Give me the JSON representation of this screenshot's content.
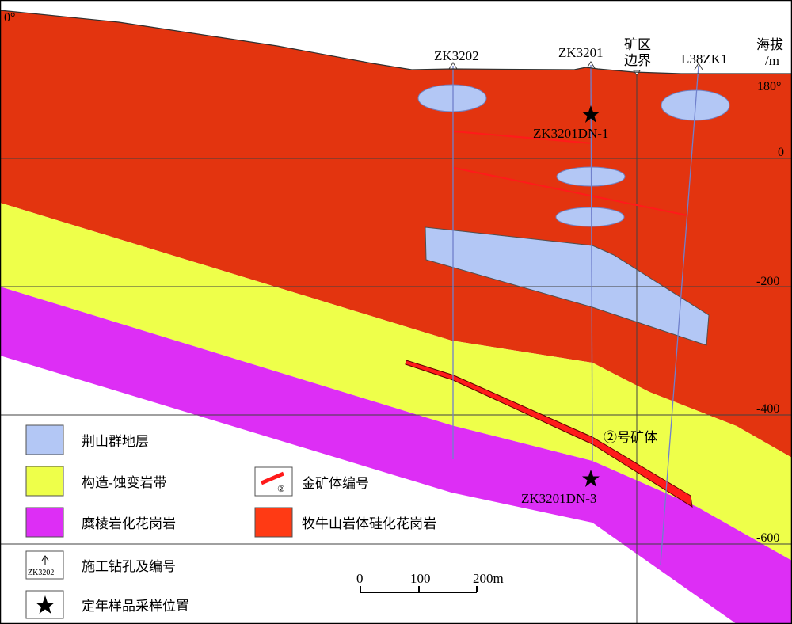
{
  "angles": {
    "left": "0°",
    "right": "180°"
  },
  "elevation_axis": {
    "title_line1": "海拔",
    "title_line2": "/m"
  },
  "elevation_ticks": [
    "0",
    "-200",
    "-400",
    "-600"
  ],
  "boreholes": {
    "zk3202": "ZK3202",
    "zk3201": "ZK3201",
    "l38zk1": "L38ZK1"
  },
  "boundary": {
    "line1": "矿区",
    "line2": "边界"
  },
  "samples": {
    "upper": "ZK3201DN-1",
    "lower": "ZK3201DN-3"
  },
  "orebody_label": "②号矿体",
  "scale_bar": {
    "ticks": [
      "0",
      "100",
      "200m"
    ]
  },
  "legend": {
    "jingshan": "荆山群地层",
    "alteration": "构造-蚀变岩带",
    "mileng": "糜棱岩化花岗岩",
    "borehole_label": "施工钻孔及编号",
    "borehole_sample": "ZK3202",
    "sample": "定年样品采样位置",
    "orebody_number": "金矿体编号",
    "orebody_symbol": "②",
    "muniu": "牧牛山岩体硅化花岗岩"
  },
  "colors": {
    "muniu_granite": "#E3340F",
    "alteration_zone": "#EEFF4A",
    "mylonite": "#DD2EF5",
    "jingshan": "#B3C7F5",
    "orebody": "#FF1A1A",
    "drillhole": "#7080CC"
  }
}
